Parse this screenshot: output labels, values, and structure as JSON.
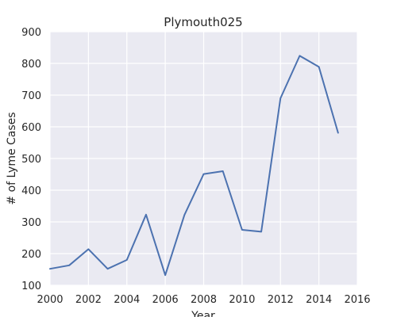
{
  "chart_data": {
    "type": "line",
    "title": "Plymouth025",
    "xlabel": "Year",
    "ylabel": "# of Lyme Cases",
    "xlim": [
      2000,
      2016
    ],
    "ylim": [
      100,
      900
    ],
    "xticks": [
      2000,
      2002,
      2004,
      2006,
      2008,
      2010,
      2012,
      2014,
      2016
    ],
    "yticks": [
      100,
      200,
      300,
      400,
      500,
      600,
      700,
      800,
      900
    ],
    "grid": true,
    "style": "seaborn-darkgrid",
    "series": [
      {
        "color": "#4c72b0",
        "x": [
          2000,
          2001,
          2002,
          2003,
          2004,
          2005,
          2006,
          2007,
          2008,
          2009,
          2010,
          2011,
          2012,
          2013,
          2014,
          2015
        ],
        "y": [
          152,
          163,
          214,
          152,
          180,
          323,
          132,
          322,
          451,
          460,
          275,
          269,
          690,
          824,
          789,
          581
        ]
      }
    ],
    "colors": {
      "plot_background": "#eaeaf2",
      "grid": "#ffffff",
      "text": "#262626"
    }
  }
}
